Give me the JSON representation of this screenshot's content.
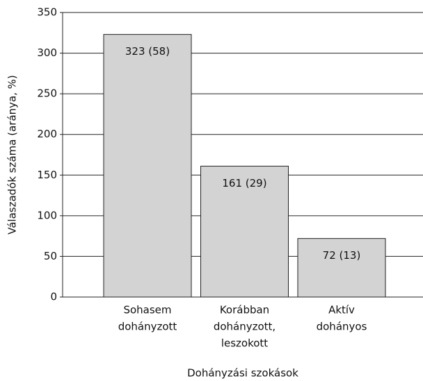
{
  "chart_data": {
    "type": "bar",
    "categories": [
      [
        "Sohasem",
        "dohányzott"
      ],
      [
        "Korábban",
        "dohányzott,",
        "leszokott"
      ],
      [
        "Aktív",
        "dohányos"
      ]
    ],
    "values": [
      323,
      161,
      72
    ],
    "value_labels": [
      "323 (58)",
      "161 (29)",
      "72 (13)"
    ],
    "color": "#d3d3d3",
    "ylim": [
      0,
      350
    ],
    "yticks": [
      0,
      50,
      100,
      150,
      200,
      250,
      300,
      350
    ],
    "grid": true,
    "xlabel": "Dohányzási szokások",
    "ylabel": "Válaszadók száma (aránya, %)"
  }
}
